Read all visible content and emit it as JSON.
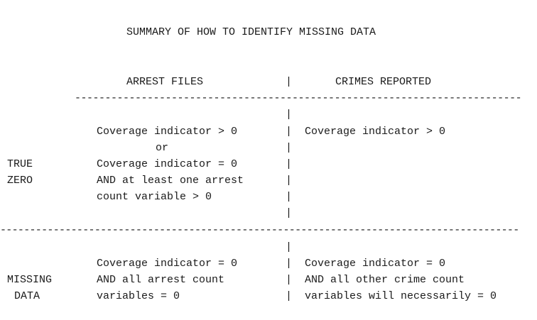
{
  "title": "SUMMARY OF HOW TO IDENTIFY MISSING DATA",
  "headers": {
    "arrest_files": "ARREST FILES",
    "crimes_reported": "CRIMES REPORTED"
  },
  "separator_char": "|",
  "dash_line_top": "--------------------------------------------------------------------------",
  "dash_line_mid": "----------------------------------------------------------------------------------------",
  "true_zero": {
    "label_line1": "TRUE",
    "label_line2": "ZERO",
    "arrest_lines": [
      "Coverage indicator > 0",
      "or",
      "Coverage indicator = 0",
      "AND at least one arrest",
      "count variable > 0"
    ],
    "crimes_lines": [
      "Coverage indicator > 0"
    ]
  },
  "missing_data": {
    "label_line1": "MISSING",
    "label_line2": "DATA",
    "arrest_lines": [
      "Coverage indicator = 0",
      "AND all arrest count",
      "variables = 0"
    ],
    "crimes_lines": [
      "Coverage indicator = 0",
      "AND all other crime count",
      "variables will necessarily = 0"
    ]
  }
}
